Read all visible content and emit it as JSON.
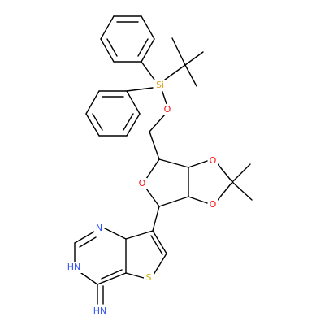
{
  "colors": {
    "bond": "#000000",
    "oxygen": "#ff0d0d",
    "nitrogen": "#3050f8",
    "silicon": "#daa520",
    "sulfur": "#c8b400"
  },
  "labels": {
    "si": "Si",
    "o_silyl": "O",
    "o_acetal_top": "O",
    "o_acetal_bottom": "O",
    "o_ring": "O",
    "n_top": "N",
    "nh": "HN",
    "s": "S",
    "imine": "HN"
  }
}
